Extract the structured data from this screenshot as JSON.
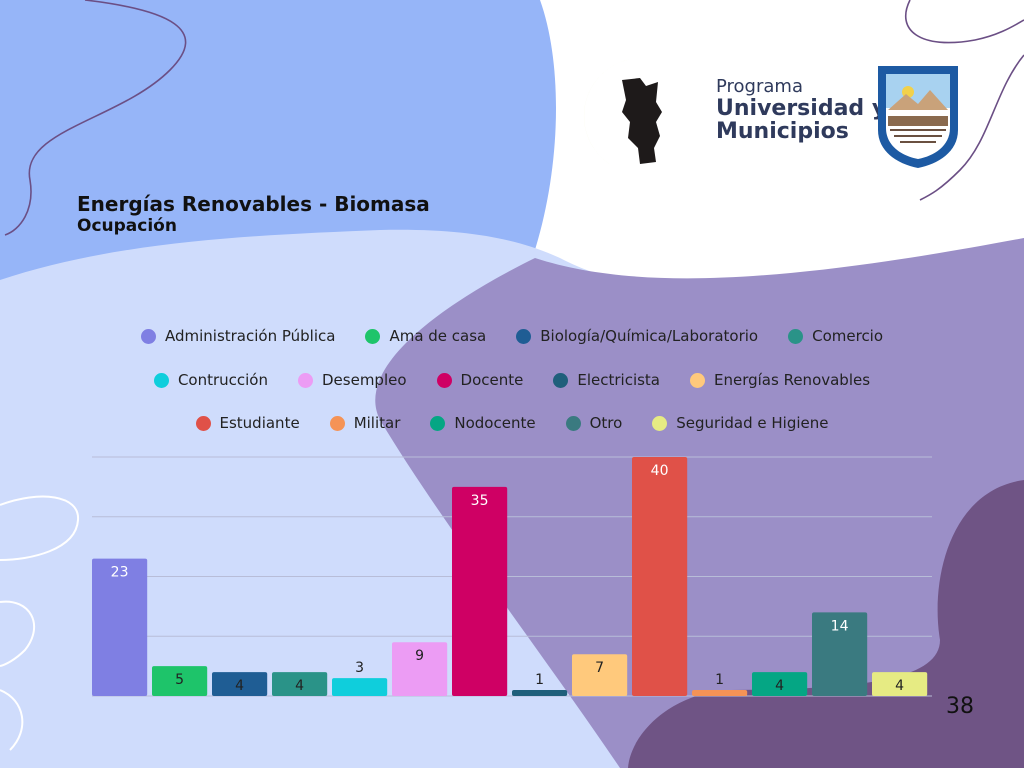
{
  "slide": {
    "title": "Energías Renovables - Biomasa",
    "subtitle": "Ocupación",
    "page_number": "38"
  },
  "logo": {
    "line1": "Programa",
    "line2": "Universidad y",
    "line3": "Municipios"
  },
  "colors": {
    "bg_blue": "#96b5f8",
    "bg_light": "#cfdcfc",
    "bg_purple": "#9b8fc7",
    "bg_dark_purple": "#6f5485",
    "grid": "#b8bdd8"
  },
  "chart_data": {
    "type": "bar",
    "title": "",
    "xlabel": "",
    "ylabel": "",
    "ylim": [
      0,
      40
    ],
    "grid": true,
    "legend_position": "top",
    "categories": [
      "Administración Pública",
      "Ama de casa",
      "Biología/Química/Laboratorio",
      "Comercio",
      "Contrucción",
      "Desempleo",
      "Docente",
      "Electricista",
      "Energías Renovables",
      "Estudiante",
      "Militar",
      "Nodocente",
      "Otro",
      "Seguridad e Higiene"
    ],
    "values": [
      23,
      5,
      4,
      4,
      3,
      9,
      35,
      1,
      7,
      40,
      1,
      4,
      14,
      4
    ],
    "colors": [
      "#7f7fe3",
      "#1ec46a",
      "#1f5d94",
      "#2a9388",
      "#0fcedc",
      "#ec9cf4",
      "#cf0064",
      "#1f5f7b",
      "#ffc97c",
      "#e05148",
      "#f59356",
      "#05a684",
      "#3a7a80",
      "#e6eb83"
    ],
    "legend_rows": [
      [
        0,
        1,
        2,
        3
      ],
      [
        4,
        5,
        6,
        7,
        8
      ],
      [
        9,
        10,
        11,
        12,
        13
      ]
    ]
  }
}
